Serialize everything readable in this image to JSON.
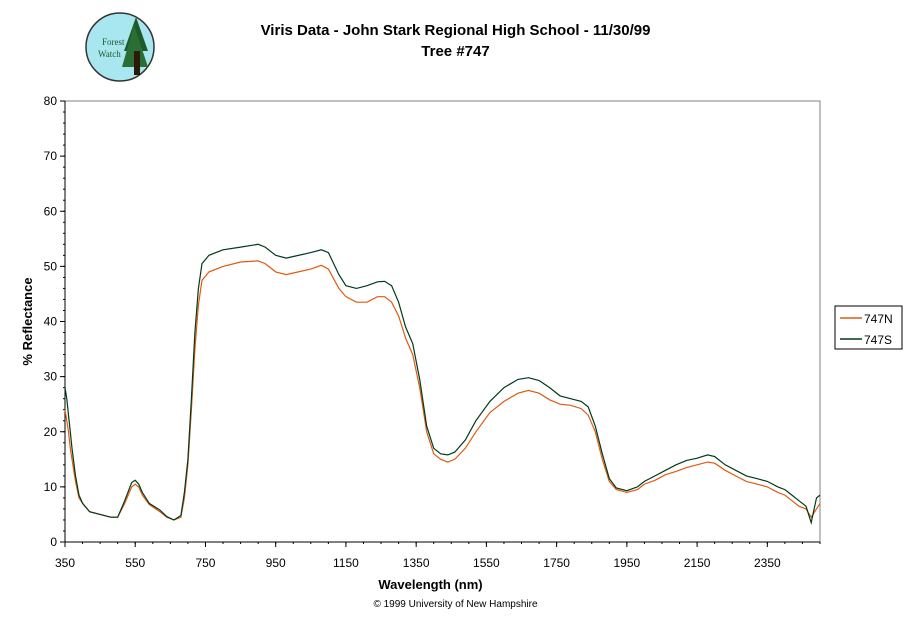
{
  "header": {
    "title": "Viris Data - John Stark Regional High School - 11/30/99",
    "subtitle": "Tree #747",
    "logo_text_1": "Forest",
    "logo_text_2": "Watch"
  },
  "footer": {
    "copyright": "© 1999 University of New Hampshire"
  },
  "colors": {
    "series_747N": "#e05a10",
    "series_747S": "#003a1a",
    "axis": "#000000",
    "logo_sky": "#a8e6f0",
    "logo_tree": "#1f5a2a"
  },
  "chart_data": {
    "type": "line",
    "title": "Viris Data - John Stark Regional High School - 11/30/99",
    "subtitle": "Tree #747",
    "xlabel": "Wavelength (nm)",
    "ylabel": "% Reflectance",
    "xlim": [
      350,
      2500
    ],
    "ylim": [
      0,
      80
    ],
    "x_ticks": [
      350,
      550,
      750,
      950,
      1150,
      1350,
      1550,
      1750,
      1950,
      2150,
      2350
    ],
    "y_ticks": [
      0,
      10,
      20,
      30,
      40,
      50,
      60,
      70,
      80
    ],
    "legend": {
      "position": "right",
      "entries": [
        "747N",
        "747S"
      ]
    },
    "grid": false,
    "series": [
      {
        "name": "747N",
        "color": "#e05a10",
        "points": [
          [
            350,
            24
          ],
          [
            355,
            22
          ],
          [
            360,
            20
          ],
          [
            365,
            17
          ],
          [
            370,
            15
          ],
          [
            380,
            11
          ],
          [
            390,
            8
          ],
          [
            400,
            7
          ],
          [
            420,
            5.5
          ],
          [
            450,
            5
          ],
          [
            480,
            4.5
          ],
          [
            500,
            4.5
          ],
          [
            520,
            7
          ],
          [
            540,
            10
          ],
          [
            550,
            10.5
          ],
          [
            560,
            10
          ],
          [
            570,
            8.5
          ],
          [
            590,
            6.8
          ],
          [
            620,
            5.5
          ],
          [
            640,
            4.5
          ],
          [
            660,
            4
          ],
          [
            680,
            4.5
          ],
          [
            690,
            8
          ],
          [
            700,
            14
          ],
          [
            710,
            24
          ],
          [
            720,
            35
          ],
          [
            730,
            43
          ],
          [
            740,
            47.5
          ],
          [
            760,
            49
          ],
          [
            800,
            50
          ],
          [
            850,
            50.8
          ],
          [
            900,
            51
          ],
          [
            920,
            50.5
          ],
          [
            950,
            49
          ],
          [
            980,
            48.5
          ],
          [
            1000,
            48.8
          ],
          [
            1050,
            49.5
          ],
          [
            1080,
            50.2
          ],
          [
            1100,
            49.5
          ],
          [
            1130,
            46
          ],
          [
            1150,
            44.5
          ],
          [
            1180,
            43.5
          ],
          [
            1210,
            43.5
          ],
          [
            1240,
            44.5
          ],
          [
            1260,
            44.5
          ],
          [
            1280,
            43.5
          ],
          [
            1300,
            41
          ],
          [
            1320,
            37
          ],
          [
            1340,
            34
          ],
          [
            1360,
            28
          ],
          [
            1380,
            20
          ],
          [
            1400,
            16
          ],
          [
            1420,
            15
          ],
          [
            1440,
            14.5
          ],
          [
            1460,
            15
          ],
          [
            1490,
            17
          ],
          [
            1520,
            20
          ],
          [
            1560,
            23.5
          ],
          [
            1600,
            25.5
          ],
          [
            1640,
            27
          ],
          [
            1670,
            27.5
          ],
          [
            1700,
            27
          ],
          [
            1730,
            25.8
          ],
          [
            1760,
            25
          ],
          [
            1790,
            24.8
          ],
          [
            1820,
            24.2
          ],
          [
            1840,
            23
          ],
          [
            1860,
            20
          ],
          [
            1880,
            15
          ],
          [
            1900,
            11
          ],
          [
            1920,
            9.5
          ],
          [
            1950,
            9
          ],
          [
            1980,
            9.5
          ],
          [
            2000,
            10.5
          ],
          [
            2030,
            11.2
          ],
          [
            2060,
            12.2
          ],
          [
            2090,
            12.8
          ],
          [
            2120,
            13.5
          ],
          [
            2150,
            14
          ],
          [
            2180,
            14.5
          ],
          [
            2200,
            14.3
          ],
          [
            2230,
            13
          ],
          [
            2260,
            12
          ],
          [
            2290,
            11
          ],
          [
            2320,
            10.5
          ],
          [
            2350,
            10
          ],
          [
            2380,
            9
          ],
          [
            2400,
            8.5
          ],
          [
            2420,
            7.5
          ],
          [
            2440,
            6.5
          ],
          [
            2460,
            6
          ],
          [
            2475,
            4.5
          ],
          [
            2490,
            6
          ],
          [
            2500,
            7
          ]
        ]
      },
      {
        "name": "747S",
        "color": "#003a1a",
        "points": [
          [
            350,
            28
          ],
          [
            355,
            26
          ],
          [
            360,
            23
          ],
          [
            365,
            20
          ],
          [
            370,
            17
          ],
          [
            380,
            12
          ],
          [
            390,
            8.5
          ],
          [
            400,
            7
          ],
          [
            420,
            5.5
          ],
          [
            450,
            5
          ],
          [
            480,
            4.5
          ],
          [
            500,
            4.5
          ],
          [
            520,
            7.5
          ],
          [
            540,
            10.8
          ],
          [
            550,
            11.2
          ],
          [
            560,
            10.5
          ],
          [
            570,
            9
          ],
          [
            590,
            7
          ],
          [
            620,
            5.8
          ],
          [
            640,
            4.6
          ],
          [
            660,
            4
          ],
          [
            680,
            4.8
          ],
          [
            690,
            9
          ],
          [
            700,
            15
          ],
          [
            710,
            26
          ],
          [
            720,
            38
          ],
          [
            730,
            46
          ],
          [
            740,
            50.5
          ],
          [
            760,
            52
          ],
          [
            800,
            53
          ],
          [
            850,
            53.5
          ],
          [
            900,
            54
          ],
          [
            920,
            53.5
          ],
          [
            950,
            52
          ],
          [
            980,
            51.5
          ],
          [
            1000,
            51.8
          ],
          [
            1050,
            52.5
          ],
          [
            1080,
            53
          ],
          [
            1100,
            52.5
          ],
          [
            1130,
            48.5
          ],
          [
            1150,
            46.5
          ],
          [
            1180,
            46
          ],
          [
            1210,
            46.5
          ],
          [
            1240,
            47.2
          ],
          [
            1260,
            47.3
          ],
          [
            1280,
            46.5
          ],
          [
            1300,
            43.5
          ],
          [
            1320,
            39
          ],
          [
            1340,
            36
          ],
          [
            1360,
            29.5
          ],
          [
            1380,
            21
          ],
          [
            1400,
            17
          ],
          [
            1420,
            16
          ],
          [
            1440,
            15.8
          ],
          [
            1460,
            16.3
          ],
          [
            1490,
            18.5
          ],
          [
            1520,
            22
          ],
          [
            1560,
            25.5
          ],
          [
            1600,
            28
          ],
          [
            1640,
            29.5
          ],
          [
            1670,
            29.8
          ],
          [
            1700,
            29.3
          ],
          [
            1730,
            28
          ],
          [
            1760,
            26.5
          ],
          [
            1790,
            26
          ],
          [
            1820,
            25.5
          ],
          [
            1840,
            24.5
          ],
          [
            1860,
            21
          ],
          [
            1880,
            16
          ],
          [
            1900,
            11.5
          ],
          [
            1920,
            9.8
          ],
          [
            1950,
            9.3
          ],
          [
            1980,
            10
          ],
          [
            2000,
            11
          ],
          [
            2030,
            12
          ],
          [
            2060,
            13
          ],
          [
            2090,
            14
          ],
          [
            2120,
            14.8
          ],
          [
            2150,
            15.2
          ],
          [
            2180,
            15.8
          ],
          [
            2200,
            15.5
          ],
          [
            2230,
            14
          ],
          [
            2260,
            13
          ],
          [
            2290,
            12
          ],
          [
            2320,
            11.5
          ],
          [
            2350,
            11
          ],
          [
            2380,
            10
          ],
          [
            2400,
            9.5
          ],
          [
            2420,
            8.5
          ],
          [
            2440,
            7.5
          ],
          [
            2460,
            6.5
          ],
          [
            2475,
            3.5
          ],
          [
            2490,
            8
          ],
          [
            2500,
            8.5
          ]
        ]
      }
    ]
  }
}
